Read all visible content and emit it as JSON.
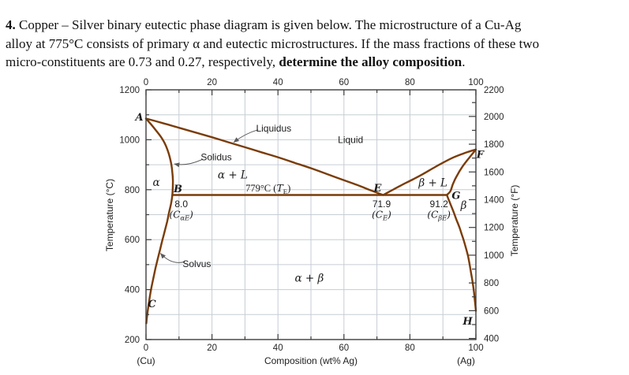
{
  "problem": {
    "lines": [
      [
        {
          "t": "4.",
          "b": true
        },
        {
          "t": " Copper – Silver binary eutectic phase diagram is given below.  The microstructure of a Cu-Ag",
          "b": false
        }
      ],
      [
        {
          "t": "alloy at 775°C consists of primary α and eutectic microstructures. If the mass fractions of these two",
          "b": false
        }
      ],
      [
        {
          "t": "micro-constituents are 0.73 and 0.27, respectively, ",
          "b": false
        },
        {
          "t": "determine the alloy composition",
          "b": true
        },
        {
          "t": ".",
          "b": false
        }
      ]
    ]
  },
  "chart_data": {
    "type": "line",
    "title": "Copper–Silver binary eutectic phase diagram",
    "xlabel": "Composition (wt% Ag)",
    "x_end_labels": {
      "left": "(Cu)",
      "right": "(Ag)"
    },
    "ylabel_left": "Temperature (°C)",
    "ylabel_right": "Temperature (°F)",
    "xlim": [
      0,
      100
    ],
    "ylim_c": [
      200,
      1200
    ],
    "x_ticks": [
      0,
      20,
      40,
      60,
      80,
      100
    ],
    "x_minor_step": 10,
    "left_ticks_c": [
      200,
      400,
      600,
      800,
      1000,
      1200
    ],
    "left_minor_step_c": 100,
    "right_ticks_f": [
      400,
      600,
      800,
      1000,
      1200,
      1400,
      1600,
      1800,
      2000,
      2200
    ],
    "right_minor_step_f": 100,
    "grid": {
      "on": true,
      "x_step": 10,
      "y_step_c": 100
    },
    "eutectic": {
      "temperature_c": 779,
      "composition_wt_ag": 71.9,
      "alpha_max_solubility_wt_ag": 8.0,
      "beta_min_wt_ag": 91.2
    },
    "series": [
      {
        "name": "liquidus-left",
        "points": [
          [
            0,
            1085
          ],
          [
            5,
            1067
          ],
          [
            10,
            1048
          ],
          [
            15,
            1029
          ],
          [
            20,
            1010
          ],
          [
            25,
            990
          ],
          [
            30,
            970
          ],
          [
            35,
            950
          ],
          [
            40,
            930
          ],
          [
            45,
            908
          ],
          [
            50,
            886
          ],
          [
            55,
            862
          ],
          [
            60,
            838
          ],
          [
            65,
            814
          ],
          [
            68,
            798
          ],
          [
            71.9,
            779
          ]
        ]
      },
      {
        "name": "solidus-left",
        "points": [
          [
            0,
            1085
          ],
          [
            1.5,
            1062
          ],
          [
            3,
            1038
          ],
          [
            4.5,
            1012
          ],
          [
            5.6,
            988
          ],
          [
            6.5,
            960
          ],
          [
            7.2,
            930
          ],
          [
            7.7,
            900
          ],
          [
            8.0,
            868
          ],
          [
            8.15,
            835
          ],
          [
            8.1,
            806
          ],
          [
            8.0,
            779
          ]
        ]
      },
      {
        "name": "solvus-left",
        "points": [
          [
            8.0,
            779
          ],
          [
            7.6,
            745
          ],
          [
            7.0,
            710
          ],
          [
            6.4,
            672
          ],
          [
            5.7,
            635
          ],
          [
            5.0,
            600
          ],
          [
            4.3,
            562
          ],
          [
            3.6,
            525
          ],
          [
            2.9,
            487
          ],
          [
            2.3,
            450
          ],
          [
            1.7,
            412
          ],
          [
            1.2,
            375
          ],
          [
            0.8,
            340
          ],
          [
            0.45,
            308
          ],
          [
            0.2,
            280
          ],
          [
            0.1,
            265
          ]
        ]
      },
      {
        "name": "eutectic-isotherm",
        "points": [
          [
            8.0,
            779
          ],
          [
            91.2,
            779
          ]
        ]
      },
      {
        "name": "liquidus-right",
        "points": [
          [
            71.9,
            779
          ],
          [
            75,
            801
          ],
          [
            78,
            822
          ],
          [
            81,
            842
          ],
          [
            84,
            863
          ],
          [
            87,
            886
          ],
          [
            90,
            908
          ],
          [
            93,
            928
          ],
          [
            96,
            944
          ],
          [
            98,
            953
          ],
          [
            100,
            961
          ]
        ]
      },
      {
        "name": "solidus-right",
        "points": [
          [
            100,
            961
          ],
          [
            97.8,
            925
          ],
          [
            95.9,
            892
          ],
          [
            94.2,
            855
          ],
          [
            93.1,
            825
          ],
          [
            92.3,
            795
          ],
          [
            91.2,
            779
          ]
        ]
      },
      {
        "name": "solvus-right",
        "points": [
          [
            91.2,
            779
          ],
          [
            92.2,
            745
          ],
          [
            93.2,
            712
          ],
          [
            94.1,
            680
          ],
          [
            95.0,
            650
          ],
          [
            95.7,
            622
          ],
          [
            96.3,
            598
          ],
          [
            97.0,
            565
          ],
          [
            97.6,
            535
          ],
          [
            98.1,
            500
          ],
          [
            98.6,
            462
          ],
          [
            99.0,
            430
          ],
          [
            99.4,
            392
          ],
          [
            99.7,
            355
          ],
          [
            100,
            315
          ]
        ]
      }
    ],
    "point_labels": [
      {
        "id": "A",
        "text": "A",
        "x": -2,
        "y": 1090
      },
      {
        "id": "B",
        "text": "B",
        "x": 9.7,
        "y": 802
      },
      {
        "id": "C",
        "text": "C",
        "x": 1.8,
        "y": 342
      },
      {
        "id": "E",
        "text": "E",
        "x": 70.2,
        "y": 805
      },
      {
        "id": "F",
        "text": "F",
        "x": 101.3,
        "y": 940
      },
      {
        "id": "G",
        "text": "G",
        "x": 94,
        "y": 775
      },
      {
        "id": "H",
        "text": "H",
        "x": 97.5,
        "y": 272
      }
    ],
    "region_labels": [
      {
        "id": "alpha",
        "text": "α",
        "style": "math",
        "x": 3.1,
        "y": 828
      },
      {
        "id": "alpha-plus-l",
        "text": "α + L",
        "style": "math",
        "x": 26.3,
        "y": 858
      },
      {
        "id": "liquid",
        "text": "Liquid",
        "style": "plain",
        "x": 62,
        "y": 1000
      },
      {
        "id": "beta-plus-l",
        "text": "β + L",
        "style": "math",
        "x": 87,
        "y": 826
      },
      {
        "id": "beta",
        "text": "β",
        "style": "math",
        "x": 96.3,
        "y": 736
      },
      {
        "id": "alpha-plus-beta",
        "text": "α + β",
        "style": "math",
        "x": 49.5,
        "y": 444
      }
    ],
    "curve_labels": [
      {
        "id": "liquidus",
        "text": "Liquidus",
        "x": 38.7,
        "y": 1046
      },
      {
        "id": "solidus",
        "text": "Solidus",
        "x": 21.3,
        "y": 930
      },
      {
        "id": "solvus",
        "text": "Solvus",
        "x": 15.4,
        "y": 503
      }
    ],
    "eutectic_label": {
      "text": "779°C (*T*_{E})",
      "x": 37,
      "y": 806
    },
    "callouts": [
      {
        "id": "c-alpha-e",
        "num": "8.0",
        "sub": "(C_{αE})",
        "x": 10.7,
        "y_num": 742,
        "y_sub": 700
      },
      {
        "id": "c-e",
        "num": "71.9",
        "sub": "(C_{E})",
        "x": 71.4,
        "y_num": 742,
        "y_sub": 700
      },
      {
        "id": "c-beta-e",
        "num": "91.2",
        "sub": "(C_{βE})",
        "x": 88.8,
        "y_num": 742,
        "y_sub": 700
      }
    ],
    "arrows": [
      {
        "for": "liquidus",
        "from": [
          34,
          1040
        ],
        "ctrl": [
          30,
          1025
        ],
        "to": [
          26.6,
          990
        ]
      },
      {
        "for": "solidus",
        "from": [
          17.2,
          922
        ],
        "ctrl": [
          12.6,
          893
        ],
        "to": [
          8.6,
          903
        ]
      },
      {
        "for": "solvus",
        "from": [
          11.8,
          512
        ],
        "ctrl": [
          7.8,
          496
        ],
        "to": [
          4.4,
          545
        ]
      }
    ],
    "colors": {
      "boundary": "#7a3c08",
      "grid": "#c6cdd4",
      "axis": "#3d3d3d",
      "arrow": "#5a5a5a",
      "text": "#1b1b1b"
    }
  }
}
